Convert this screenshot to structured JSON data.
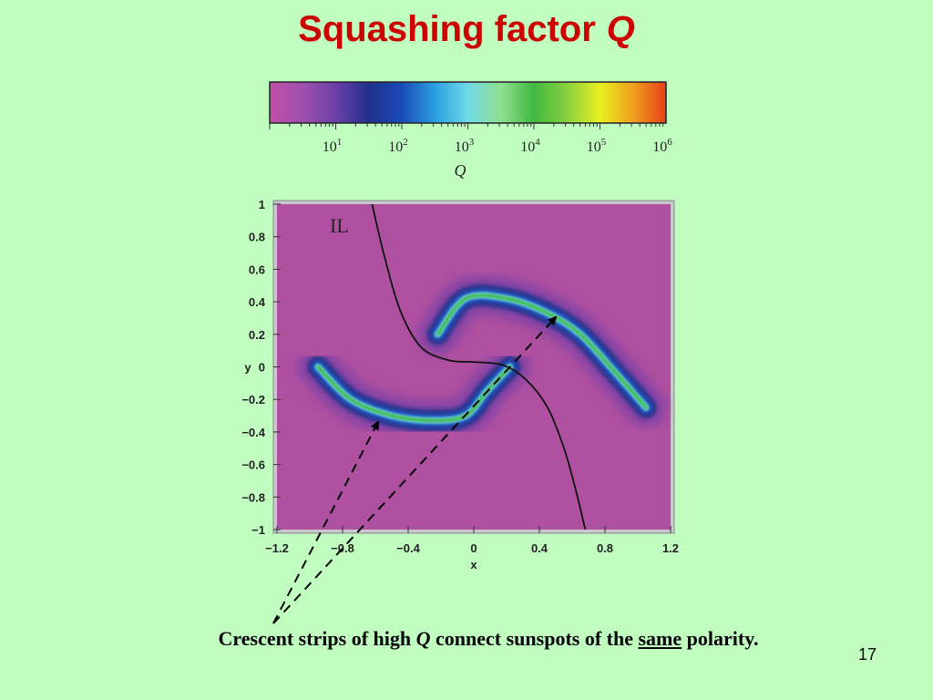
{
  "slide": {
    "title_text": "Squashing factor",
    "title_symbol": "Q",
    "caption_before": "Crescent strips of high",
    "caption_symbol": "Q",
    "caption_middle": "connect sunspots of the",
    "caption_emphasis": "same",
    "caption_after": "polarity.",
    "page_number": "17"
  },
  "colorbar": {
    "label": "Q",
    "scale": "log",
    "range": [
      1,
      1000000
    ],
    "ticks": [
      {
        "base": "10",
        "exp": "1"
      },
      {
        "base": "10",
        "exp": "2"
      },
      {
        "base": "10",
        "exp": "3"
      },
      {
        "base": "10",
        "exp": "4"
      },
      {
        "base": "10",
        "exp": "5"
      },
      {
        "base": "10",
        "exp": "6"
      }
    ],
    "colors": [
      "#c050a8",
      "#a050b0",
      "#6a40a8",
      "#20308a",
      "#1a4ab8",
      "#2aa0e0",
      "#70d8e8",
      "#90e090",
      "#40b840",
      "#88d040",
      "#e8f020",
      "#f0a020",
      "#e84018"
    ]
  },
  "chart_data": {
    "type": "heatmap",
    "xlabel": "x",
    "ylabel": "y",
    "xlim": [
      -1.2,
      1.2
    ],
    "ylim": [
      -1,
      1
    ],
    "xticks": [
      "−1.2",
      "−0.8",
      "−0.4",
      "0",
      "0.4",
      "0.8",
      "1.2"
    ],
    "yticks": [
      "1",
      "0.8",
      "0.6",
      "0.4",
      "0.2",
      "0",
      "−0.2",
      "−0.4",
      "−0.6",
      "−0.8",
      "−1"
    ],
    "annotation": "IL",
    "background_color": "#b050a0",
    "il_curve": [
      [
        -0.62,
        1.0
      ],
      [
        -0.55,
        0.7
      ],
      [
        -0.45,
        0.35
      ],
      [
        -0.32,
        0.12
      ],
      [
        -0.15,
        0.04
      ],
      [
        0.0,
        0.03
      ],
      [
        0.18,
        0.01
      ],
      [
        0.32,
        -0.08
      ],
      [
        0.45,
        -0.25
      ],
      [
        0.55,
        -0.5
      ],
      [
        0.62,
        -0.75
      ],
      [
        0.68,
        -1.0
      ]
    ],
    "strips": [
      {
        "name": "lower",
        "points": [
          [
            -0.95,
            0.0
          ],
          [
            -0.75,
            -0.2
          ],
          [
            -0.5,
            -0.3
          ],
          [
            -0.25,
            -0.33
          ],
          [
            -0.05,
            -0.3
          ],
          [
            0.08,
            -0.15
          ],
          [
            0.22,
            0.0
          ]
        ]
      },
      {
        "name": "upper",
        "points": [
          [
            -0.22,
            0.2
          ],
          [
            -0.05,
            0.42
          ],
          [
            0.2,
            0.42
          ],
          [
            0.45,
            0.33
          ],
          [
            0.65,
            0.2
          ],
          [
            0.85,
            -0.02
          ],
          [
            1.05,
            -0.25
          ]
        ]
      }
    ]
  }
}
